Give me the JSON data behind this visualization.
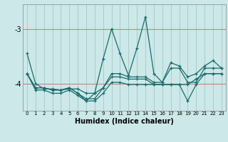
{
  "title": "",
  "xlabel": "Humidex (Indice chaleur)",
  "ylabel": "",
  "bg_color": "#cce8e8",
  "grid_color": "#aacccc",
  "line_color": "#1a6b6b",
  "hline_color": "#d08080",
  "xlim": [
    -0.5,
    23.5
  ],
  "ylim": [
    -4.5,
    -2.55
  ],
  "yticks": [
    -4,
    -3
  ],
  "xticks": [
    0,
    1,
    2,
    3,
    4,
    5,
    6,
    7,
    8,
    9,
    10,
    11,
    12,
    13,
    14,
    15,
    16,
    17,
    18,
    19,
    20,
    21,
    22,
    23
  ],
  "series": [
    [
      -3.45,
      -4.0,
      -4.1,
      -4.1,
      -4.12,
      -4.1,
      -4.1,
      -4.18,
      -4.18,
      -3.55,
      -3.0,
      -3.45,
      -3.85,
      -3.35,
      -2.78,
      -3.82,
      -3.98,
      -3.62,
      -3.68,
      -3.88,
      -3.82,
      -3.68,
      -3.58,
      -3.72
    ],
    [
      -3.82,
      -4.08,
      -4.08,
      -4.12,
      -4.12,
      -4.08,
      -4.18,
      -4.28,
      -4.28,
      -4.08,
      -3.88,
      -3.88,
      -3.92,
      -3.92,
      -3.92,
      -4.02,
      -4.02,
      -4.02,
      -4.02,
      -4.02,
      -3.92,
      -3.82,
      -3.82,
      -3.82
    ],
    [
      -3.82,
      -4.08,
      -4.08,
      -4.12,
      -4.12,
      -4.08,
      -4.18,
      -4.32,
      -4.32,
      -4.18,
      -3.98,
      -3.98,
      -4.02,
      -4.02,
      -4.02,
      -4.02,
      -4.02,
      -4.02,
      -4.02,
      -4.32,
      -4.02,
      -3.82,
      -3.82,
      -3.82
    ],
    [
      -3.82,
      -4.12,
      -4.12,
      -4.18,
      -4.18,
      -4.12,
      -4.22,
      -4.32,
      -4.18,
      -4.08,
      -3.82,
      -3.82,
      -3.88,
      -3.88,
      -3.88,
      -3.98,
      -3.98,
      -3.72,
      -3.72,
      -3.98,
      -3.98,
      -3.72,
      -3.72,
      -3.72
    ]
  ],
  "xlabel_fontsize": 7,
  "ytick_fontsize": 7,
  "xtick_fontsize": 5
}
